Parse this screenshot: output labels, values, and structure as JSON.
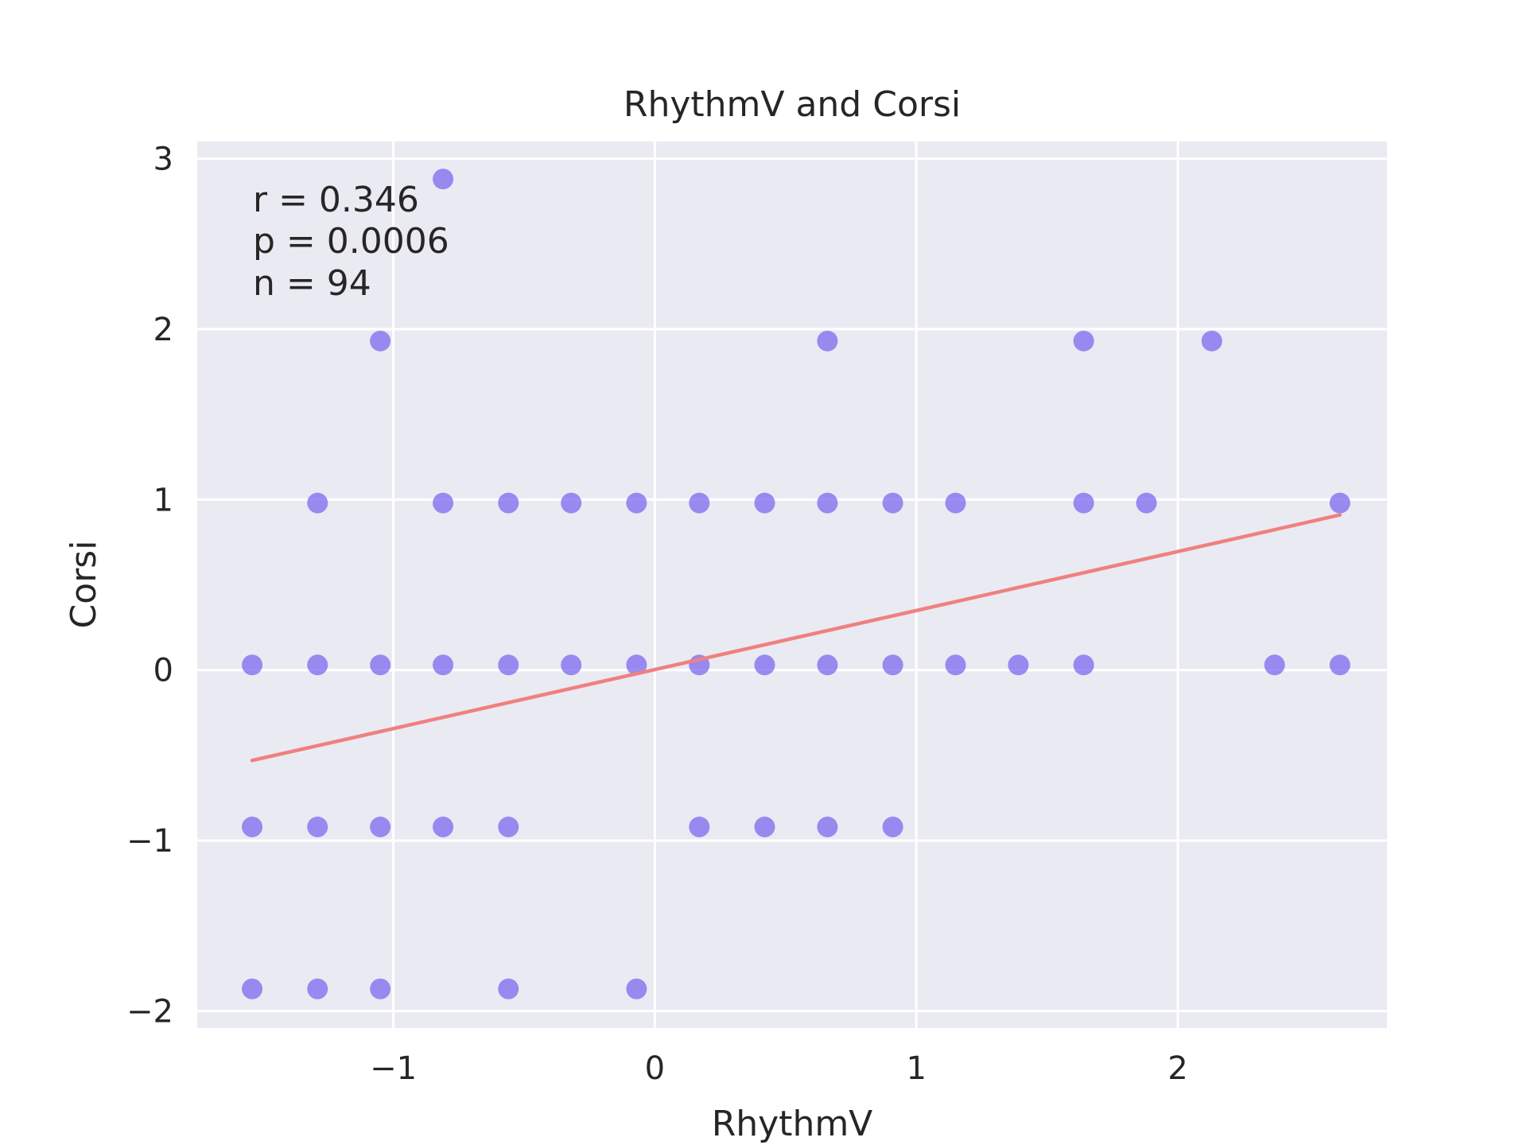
{
  "chart_data": {
    "type": "scatter",
    "title": "RhythmV and Corsi",
    "xlabel": "RhythmV",
    "ylabel": "Corsi",
    "xlim": [
      -1.75,
      2.8
    ],
    "ylim": [
      -2.1,
      3.1
    ],
    "xticks": [
      -1,
      0,
      1,
      2
    ],
    "yticks": [
      -2,
      -1,
      0,
      1,
      2,
      3
    ],
    "xtick_labels": [
      "−1",
      "0",
      "1",
      "2"
    ],
    "ytick_labels": [
      "−2",
      "−1",
      "0",
      "1",
      "2",
      "3"
    ],
    "grid": true,
    "point_color": "#7B68EE",
    "fit_color": "#F08080",
    "background_color": "#EAEAF2",
    "annotations": [
      "r = 0.346",
      "p = 0.0006",
      "n = 94"
    ],
    "points": [
      {
        "x": -0.81,
        "y": 2.88
      },
      {
        "x": -1.05,
        "y": 1.93
      },
      {
        "x": 0.66,
        "y": 1.93
      },
      {
        "x": 1.64,
        "y": 1.93
      },
      {
        "x": 2.13,
        "y": 1.93
      },
      {
        "x": -1.29,
        "y": 0.98
      },
      {
        "x": -0.81,
        "y": 0.98
      },
      {
        "x": -0.56,
        "y": 0.98
      },
      {
        "x": -0.32,
        "y": 0.98
      },
      {
        "x": -0.07,
        "y": 0.98
      },
      {
        "x": 0.17,
        "y": 0.98
      },
      {
        "x": 0.42,
        "y": 0.98
      },
      {
        "x": 0.66,
        "y": 0.98
      },
      {
        "x": 0.91,
        "y": 0.98
      },
      {
        "x": 1.15,
        "y": 0.98
      },
      {
        "x": 1.64,
        "y": 0.98
      },
      {
        "x": 1.88,
        "y": 0.98
      },
      {
        "x": 2.62,
        "y": 0.98
      },
      {
        "x": -1.54,
        "y": 0.03
      },
      {
        "x": -1.29,
        "y": 0.03
      },
      {
        "x": -1.05,
        "y": 0.03
      },
      {
        "x": -0.81,
        "y": 0.03
      },
      {
        "x": -0.56,
        "y": 0.03
      },
      {
        "x": -0.32,
        "y": 0.03
      },
      {
        "x": -0.07,
        "y": 0.03
      },
      {
        "x": 0.17,
        "y": 0.03
      },
      {
        "x": 0.42,
        "y": 0.03
      },
      {
        "x": 0.66,
        "y": 0.03
      },
      {
        "x": 0.91,
        "y": 0.03
      },
      {
        "x": 1.15,
        "y": 0.03
      },
      {
        "x": 1.39,
        "y": 0.03
      },
      {
        "x": 1.64,
        "y": 0.03
      },
      {
        "x": 2.37,
        "y": 0.03
      },
      {
        "x": 2.62,
        "y": 0.03
      },
      {
        "x": -1.54,
        "y": -0.92
      },
      {
        "x": -1.29,
        "y": -0.92
      },
      {
        "x": -1.05,
        "y": -0.92
      },
      {
        "x": -0.81,
        "y": -0.92
      },
      {
        "x": -0.56,
        "y": -0.92
      },
      {
        "x": 0.17,
        "y": -0.92
      },
      {
        "x": 0.42,
        "y": -0.92
      },
      {
        "x": 0.66,
        "y": -0.92
      },
      {
        "x": 0.91,
        "y": -0.92
      },
      {
        "x": -1.54,
        "y": -1.87
      },
      {
        "x": -1.29,
        "y": -1.87
      },
      {
        "x": -1.05,
        "y": -1.87
      },
      {
        "x": -0.56,
        "y": -1.87
      },
      {
        "x": -0.07,
        "y": -1.87
      }
    ],
    "fit_line": {
      "x": [
        -1.54,
        2.62
      ],
      "y": [
        -0.53,
        0.91
      ]
    }
  }
}
